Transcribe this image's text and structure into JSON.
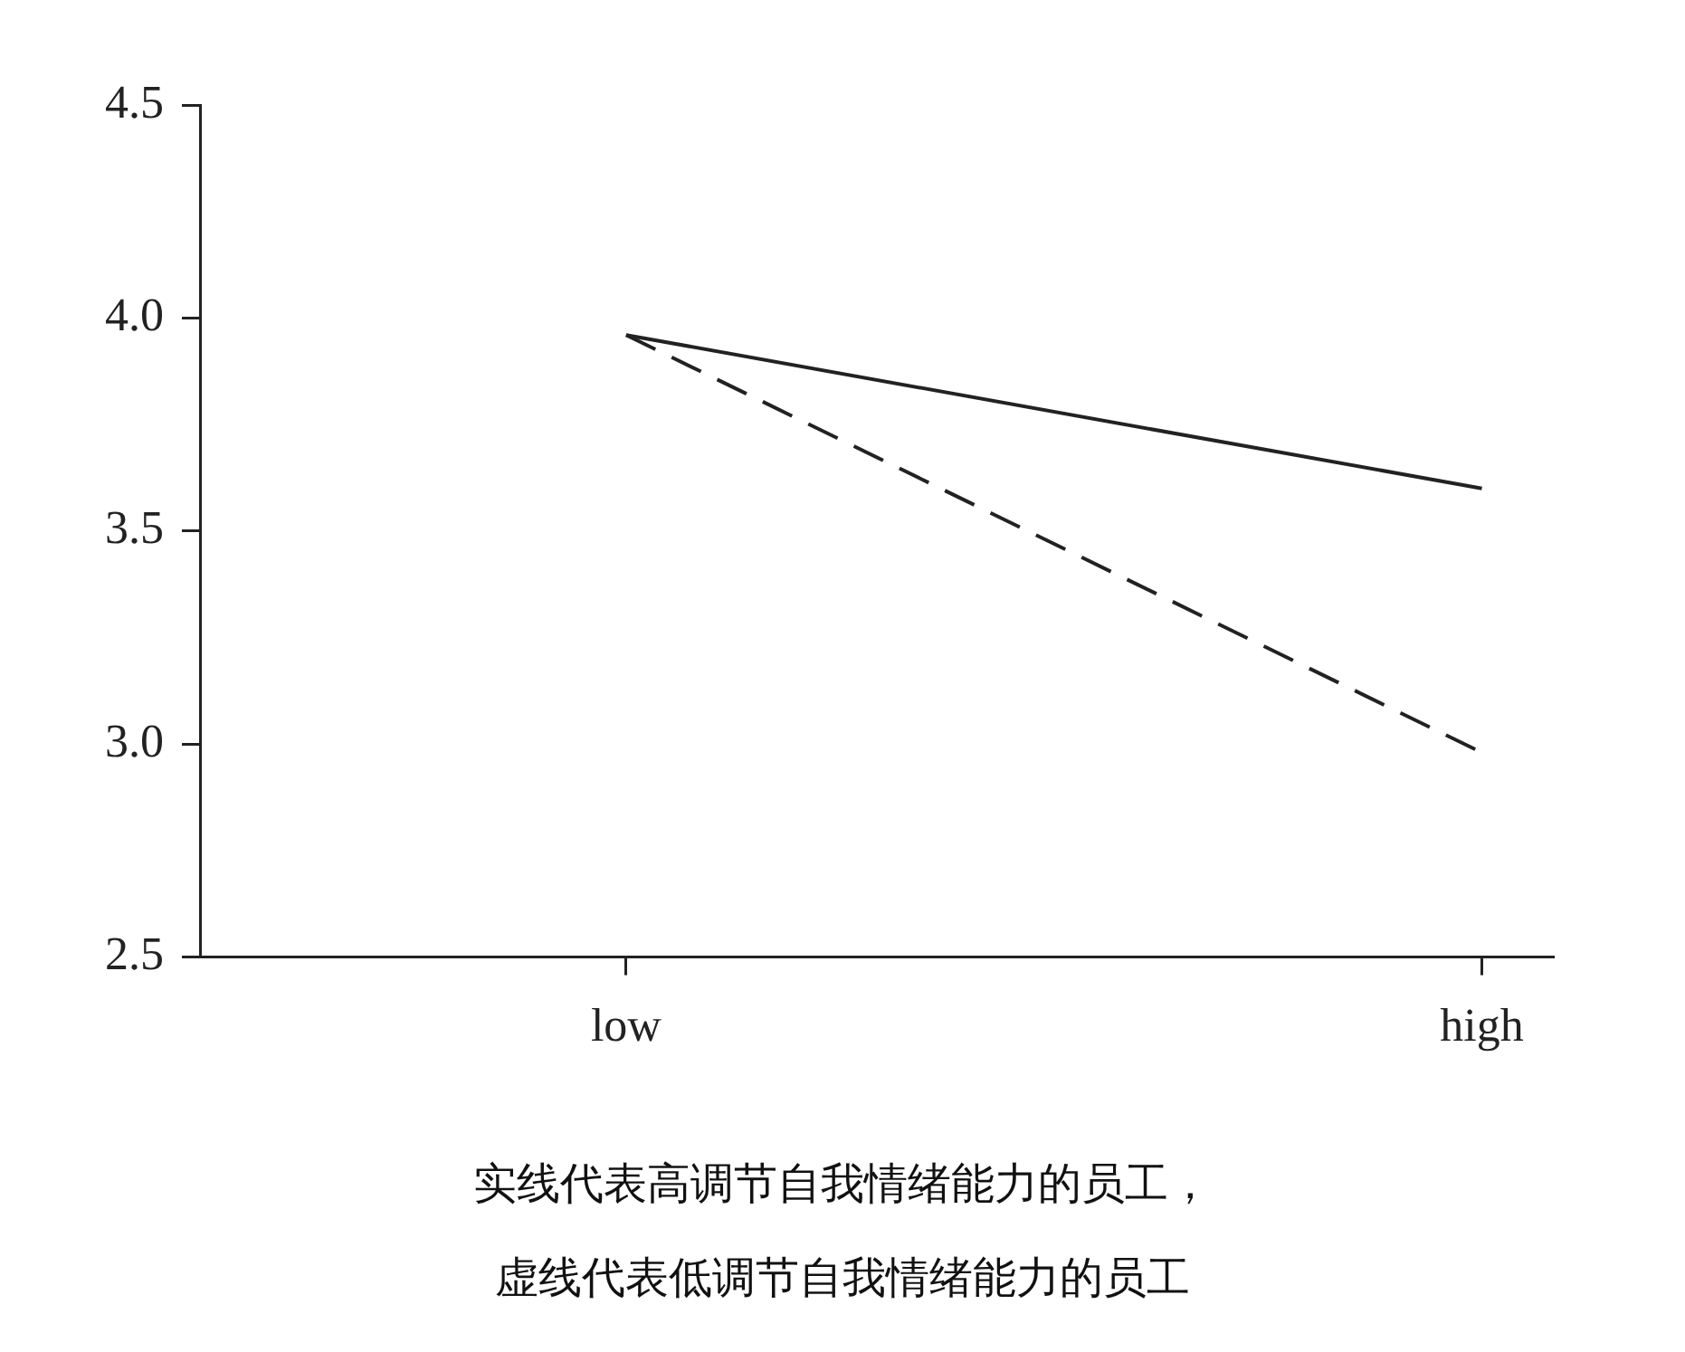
{
  "chart_data": {
    "type": "line",
    "categories": [
      "low",
      "high"
    ],
    "series": [
      {
        "color": "#222222",
        "line_style": "solid",
        "values": [
          3.96,
          3.6
        ]
      },
      {
        "color": "#222222",
        "line_style": "dashed",
        "values": [
          3.96,
          2.98
        ]
      }
    ],
    "ylim": [
      2.5,
      4.5
    ],
    "yticks": [
      2.5,
      {
        "value": 3,
        "label": "3.0"
      },
      3.5,
      {
        "value": 4,
        "label": "4.0"
      },
      4.5
    ],
    "grid": false,
    "legend": false,
    "marker": "none",
    "annotations": [
      "实线代表高调节自我情绪能力的员工，",
      "虚线代表低调节自我情绪能力的员工"
    ]
  }
}
